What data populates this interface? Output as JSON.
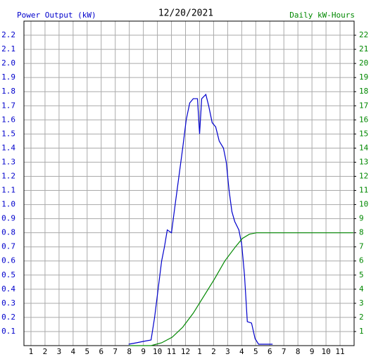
{
  "chart_data": {
    "type": "line",
    "title": "12/20/2021",
    "y_label": "Power Output (kW)",
    "y2_label": "Daily kW-Hours",
    "grid": true,
    "xlim": [
      0.5,
      24
    ],
    "xticks": [
      1,
      2,
      3,
      4,
      5,
      6,
      7,
      8,
      9,
      10,
      11,
      12,
      {
        "value": 13,
        "label": "1"
      },
      {
        "value": 14,
        "label": "2"
      },
      {
        "value": 15,
        "label": "3"
      },
      {
        "value": 16,
        "label": "4"
      },
      {
        "value": 17,
        "label": "5"
      },
      {
        "value": 18,
        "label": "6"
      },
      {
        "value": 19,
        "label": "7"
      },
      {
        "value": 20,
        "label": "8"
      },
      {
        "value": 21,
        "label": "9"
      },
      {
        "value": 22,
        "label": "10"
      },
      {
        "value": 23,
        "label": "11"
      }
    ],
    "ylim": [
      0,
      2.3
    ],
    "yticks": [
      0.1,
      0.2,
      0.3,
      0.4,
      0.5,
      0.6,
      0.7,
      0.8,
      0.9,
      {
        "value": 1,
        "label": "1.0"
      },
      1.1,
      1.2,
      1.3,
      1.4,
      1.5,
      1.6,
      1.7,
      1.8,
      1.9,
      {
        "value": 2,
        "label": "2.0"
      },
      2.1,
      2.2
    ],
    "y2lim": [
      0,
      23
    ],
    "y2ticks": [
      1,
      2,
      3,
      4,
      5,
      6,
      7,
      8,
      9,
      10,
      11,
      12,
      13,
      14,
      15,
      16,
      17,
      18,
      19,
      20,
      21,
      22
    ],
    "y_color": "#0000cc",
    "y2_color": "#008800",
    "series": [
      {
        "name": "Power Output (kW)",
        "color": "#0000cc",
        "x": [
          7.95,
          8.5,
          9.0,
          9.55,
          9.8,
          10.05,
          10.3,
          10.5,
          10.7,
          11.0,
          11.2,
          11.4,
          11.6,
          11.8,
          12.05,
          12.3,
          12.55,
          12.85,
          13.0,
          13.15,
          13.45,
          13.65,
          13.9,
          14.15,
          14.4,
          14.7,
          14.9,
          15.1,
          15.3,
          15.5,
          15.8,
          16.0,
          16.2,
          16.4,
          16.7,
          16.95,
          17.2,
          18.2
        ],
        "values": [
          0.01,
          0.02,
          0.03,
          0.04,
          0.2,
          0.4,
          0.6,
          0.7,
          0.82,
          0.8,
          0.95,
          1.1,
          1.25,
          1.4,
          1.6,
          1.72,
          1.75,
          1.75,
          1.5,
          1.75,
          1.78,
          1.7,
          1.58,
          1.55,
          1.45,
          1.4,
          1.3,
          1.1,
          0.95,
          0.88,
          0.82,
          0.72,
          0.5,
          0.17,
          0.16,
          0.05,
          0.01,
          0.01
        ]
      },
      {
        "name": "Daily kW-Hours",
        "color": "#008800",
        "axis": "y2",
        "x": [
          8.0,
          9.55,
          10.3,
          11.05,
          11.8,
          12.55,
          13.3,
          14.05,
          14.8,
          15.55,
          16.05,
          16.55,
          17.05,
          23.95
        ],
        "values": [
          0,
          0,
          0.2,
          0.6,
          1.3,
          2.3,
          3.5,
          4.7,
          6.0,
          7.0,
          7.6,
          7.9,
          8.0,
          8.0
        ]
      }
    ]
  }
}
